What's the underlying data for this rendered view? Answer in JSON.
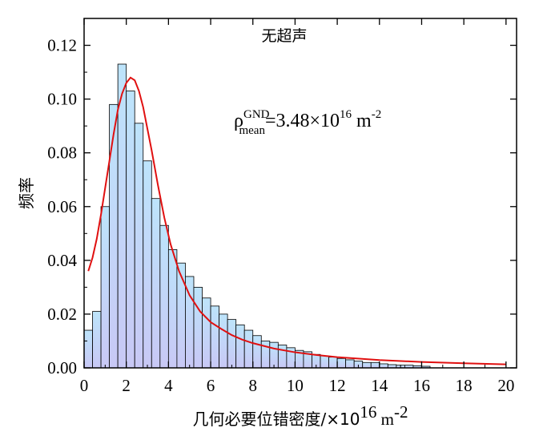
{
  "chart_data": {
    "type": "bar",
    "subtype": "histogram-with-fit",
    "title": "无超声",
    "xlabel": "几何必要位错密度/×10",
    "xlabel_exp": "16",
    "xlabel_unit": " m",
    "xlabel_unit_exp": "-2",
    "ylabel": "频率",
    "xlim": [
      0,
      20.5
    ],
    "ylim": [
      0,
      0.13
    ],
    "xticks": [
      "0",
      "2",
      "4",
      "6",
      "8",
      "10",
      "12",
      "14",
      "16",
      "18",
      "20"
    ],
    "yticks": [
      "0.00",
      "0.02",
      "0.04",
      "0.06",
      "0.08",
      "0.10",
      "0.12"
    ],
    "bin_start": 0,
    "bin_width": 0.4,
    "values": [
      0.014,
      0.021,
      0.06,
      0.098,
      0.113,
      0.103,
      0.091,
      0.077,
      0.063,
      0.053,
      0.044,
      0.039,
      0.034,
      0.03,
      0.026,
      0.023,
      0.02,
      0.018,
      0.016,
      0.014,
      0.012,
      0.01,
      0.0095,
      0.0085,
      0.0075,
      0.0065,
      0.006,
      0.005,
      0.0045,
      0.004,
      0.0035,
      0.003,
      0.0025,
      0.002,
      0.002,
      0.0015,
      0.0012,
      0.001,
      0.001,
      0.0008,
      0.0006
    ],
    "fit_curve": {
      "type": "lognormal",
      "x": [
        0.2,
        0.4,
        0.6,
        0.8,
        1.0,
        1.2,
        1.4,
        1.6,
        1.8,
        2.0,
        2.2,
        2.4,
        2.6,
        2.8,
        3.0,
        3.2,
        3.5,
        3.8,
        4.1,
        4.5,
        5.0,
        5.5,
        6.0,
        6.5,
        7.0,
        7.5,
        8.0,
        9.0,
        10.0,
        11.0,
        12.0,
        14.0,
        16.0,
        18.0,
        20.0
      ],
      "y": [
        0.036,
        0.041,
        0.048,
        0.057,
        0.067,
        0.077,
        0.087,
        0.096,
        0.102,
        0.106,
        0.108,
        0.107,
        0.103,
        0.097,
        0.089,
        0.081,
        0.068,
        0.056,
        0.046,
        0.036,
        0.027,
        0.021,
        0.017,
        0.0145,
        0.0122,
        0.0105,
        0.0092,
        0.0072,
        0.0058,
        0.0048,
        0.004,
        0.0029,
        0.0022,
        0.0017,
        0.0013
      ],
      "color": "#e01010"
    },
    "annotation": {
      "rho": "ρ",
      "sup": "GND",
      "sub": "mean",
      "value": "=3.48×10",
      "value_exp": "16",
      "unit": " m",
      "unit_exp": "-2"
    },
    "bar_fill_top": "#bde4fb",
    "bar_fill_bottom": "#c8c8f5",
    "bar_edge": "#000000",
    "grid": false,
    "legend": "none"
  }
}
